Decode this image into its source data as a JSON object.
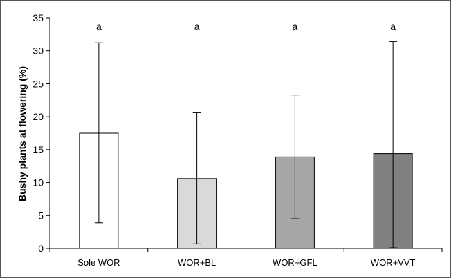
{
  "chart_data": {
    "type": "bar",
    "title": "",
    "xlabel": "",
    "ylabel": "Bushy plants at flowering (%)",
    "ylim": [
      0,
      35
    ],
    "yticks": [
      0,
      5,
      10,
      15,
      20,
      25,
      30,
      35
    ],
    "grid": false,
    "legend": "none",
    "categories": [
      "Sole WOR",
      "WOR+BL",
      "WOR+GFL",
      "WOR+VVT"
    ],
    "values": [
      17.5,
      10.6,
      13.9,
      14.4
    ],
    "error_low": [
      3.9,
      0.7,
      4.5,
      0.1
    ],
    "error_high": [
      31.2,
      20.6,
      23.3,
      31.4
    ],
    "significance_letters": [
      "a",
      "a",
      "a",
      "a"
    ],
    "bar_colors": [
      "#ffffff",
      "#d9d9d9",
      "#a6a6a6",
      "#808080"
    ]
  }
}
